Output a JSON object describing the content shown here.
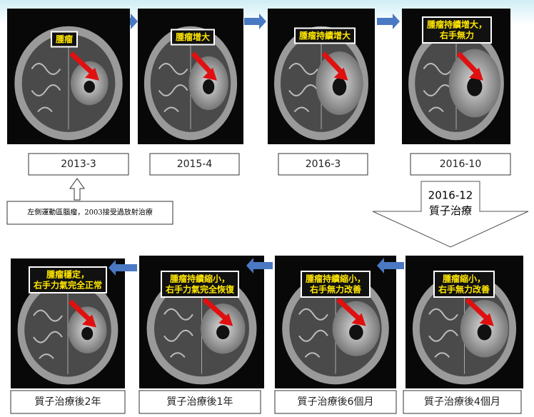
{
  "top_panels": [
    {
      "label": [
        "腫瘤"
      ],
      "date": "2013-3"
    },
    {
      "label": [
        "腫瘤增大"
      ],
      "date": "2015-4"
    },
    {
      "label": [
        "腫瘤持續增大"
      ],
      "date": "2016-3"
    },
    {
      "label": [
        "腫瘤持續增大，",
        "右手無力"
      ],
      "date": "2016-10"
    }
  ],
  "note": "左側運動區腦瘤，2003接受過放射治療",
  "treatment": {
    "date": "2016-12",
    "label": "質子治療"
  },
  "bottom_panels": [
    {
      "label": [
        "腫瘤穩定，",
        "右手力氣完全正常"
      ],
      "caption": "質子治療後2年"
    },
    {
      "label": [
        "腫瘤持續縮小，",
        "右手力氣完全恢復"
      ],
      "caption": "質子治療後1年"
    },
    {
      "label": [
        "腫瘤持續縮小，",
        "右手無力改善"
      ],
      "caption": "質子治療後6個月"
    },
    {
      "label": [
        "腫瘤縮小，",
        "右手無力改善"
      ],
      "caption": "質子治療後4個月"
    }
  ]
}
